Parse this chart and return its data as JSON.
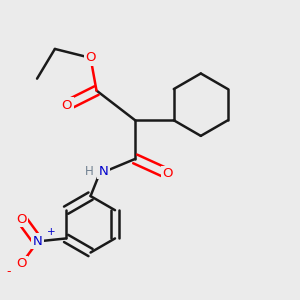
{
  "background_color": "#ebebeb",
  "bond_color": "#1a1a1a",
  "bond_width": 1.8,
  "atom_colors": {
    "O": "#ff0000",
    "N_blue": "#0000cc",
    "H": "#708090"
  },
  "layout": {
    "xlim": [
      0,
      10
    ],
    "ylim": [
      0,
      10
    ]
  }
}
